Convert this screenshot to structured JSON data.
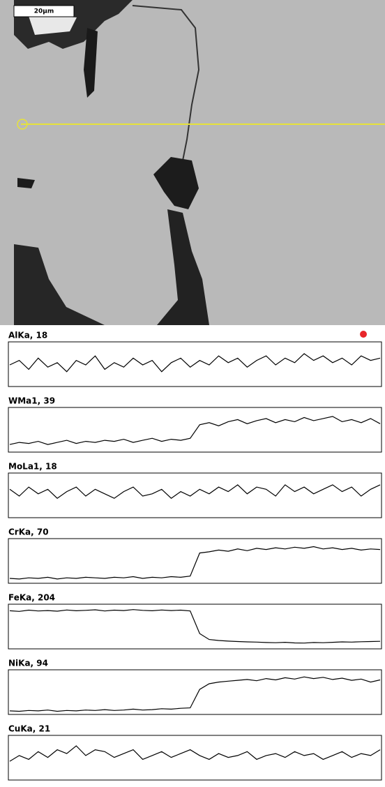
{
  "image": {
    "scale_bar": "20µm"
  },
  "chart_data": [
    {
      "type": "line",
      "title": "AlKa, 18",
      "color": "#000000",
      "ylim": [
        0,
        18
      ],
      "values": [
        9,
        11,
        7,
        12,
        8,
        10,
        6,
        11,
        9,
        13,
        7,
        10,
        8,
        12,
        9,
        11,
        6,
        10,
        12,
        8,
        11,
        9,
        13,
        10,
        12,
        8,
        11,
        13,
        9,
        12,
        10,
        14,
        11,
        13,
        10,
        12,
        9,
        13,
        11,
        12
      ]
    },
    {
      "type": "line",
      "title": "WMa1, 39",
      "color": "#000000",
      "ylim": [
        0,
        39
      ],
      "values": [
        6,
        8,
        7,
        9,
        6,
        8,
        10,
        7,
        9,
        8,
        10,
        9,
        11,
        8,
        10,
        12,
        9,
        11,
        10,
        12,
        25,
        27,
        24,
        28,
        30,
        26,
        29,
        31,
        27,
        30,
        28,
        32,
        29,
        31,
        33,
        28,
        30,
        27,
        31,
        26
      ]
    },
    {
      "type": "line",
      "title": "MoLa1, 18",
      "color": "#000000",
      "ylim": [
        0,
        18
      ],
      "values": [
        12,
        9,
        13,
        10,
        12,
        8,
        11,
        13,
        9,
        12,
        10,
        8,
        11,
        13,
        9,
        10,
        12,
        8,
        11,
        9,
        12,
        10,
        13,
        11,
        14,
        10,
        13,
        12,
        9,
        14,
        11,
        13,
        10,
        12,
        14,
        11,
        13,
        9,
        12,
        14
      ]
    },
    {
      "type": "line",
      "title": "CrKa, 70",
      "color": "#000000",
      "ylim": [
        0,
        70
      ],
      "values": [
        6,
        5,
        7,
        6,
        8,
        5,
        7,
        6,
        8,
        7,
        6,
        8,
        7,
        9,
        6,
        8,
        7,
        9,
        8,
        10,
        50,
        52,
        55,
        53,
        57,
        54,
        58,
        56,
        59,
        57,
        60,
        58,
        61,
        57,
        59,
        56,
        58,
        55,
        57,
        56
      ]
    },
    {
      "type": "line",
      "title": "FeKa, 204",
      "color": "#000000",
      "ylim": [
        0,
        204
      ],
      "values": [
        185,
        182,
        188,
        184,
        186,
        183,
        189,
        185,
        187,
        190,
        184,
        188,
        186,
        191,
        187,
        185,
        189,
        186,
        188,
        184,
        70,
        40,
        35,
        32,
        30,
        28,
        27,
        25,
        24,
        26,
        23,
        22,
        25,
        24,
        26,
        28,
        27,
        29,
        30,
        31
      ]
    },
    {
      "type": "line",
      "title": "NiKa, 94",
      "color": "#000000",
      "ylim": [
        0,
        94
      ],
      "values": [
        5,
        4,
        6,
        5,
        7,
        4,
        6,
        5,
        7,
        6,
        8,
        6,
        7,
        9,
        7,
        8,
        10,
        9,
        11,
        12,
        55,
        68,
        72,
        74,
        76,
        78,
        75,
        80,
        77,
        82,
        79,
        84,
        80,
        83,
        78,
        81,
        76,
        79,
        72,
        77
      ]
    },
    {
      "type": "line",
      "title": "CuKa, 21",
      "color": "#000000",
      "ylim": [
        0,
        21
      ],
      "values": [
        9,
        12,
        10,
        14,
        11,
        15,
        13,
        17,
        12,
        15,
        14,
        11,
        13,
        15,
        10,
        12,
        14,
        11,
        13,
        15,
        12,
        10,
        13,
        11,
        12,
        14,
        10,
        12,
        13,
        11,
        14,
        12,
        13,
        10,
        12,
        14,
        11,
        13,
        12,
        15
      ]
    }
  ]
}
